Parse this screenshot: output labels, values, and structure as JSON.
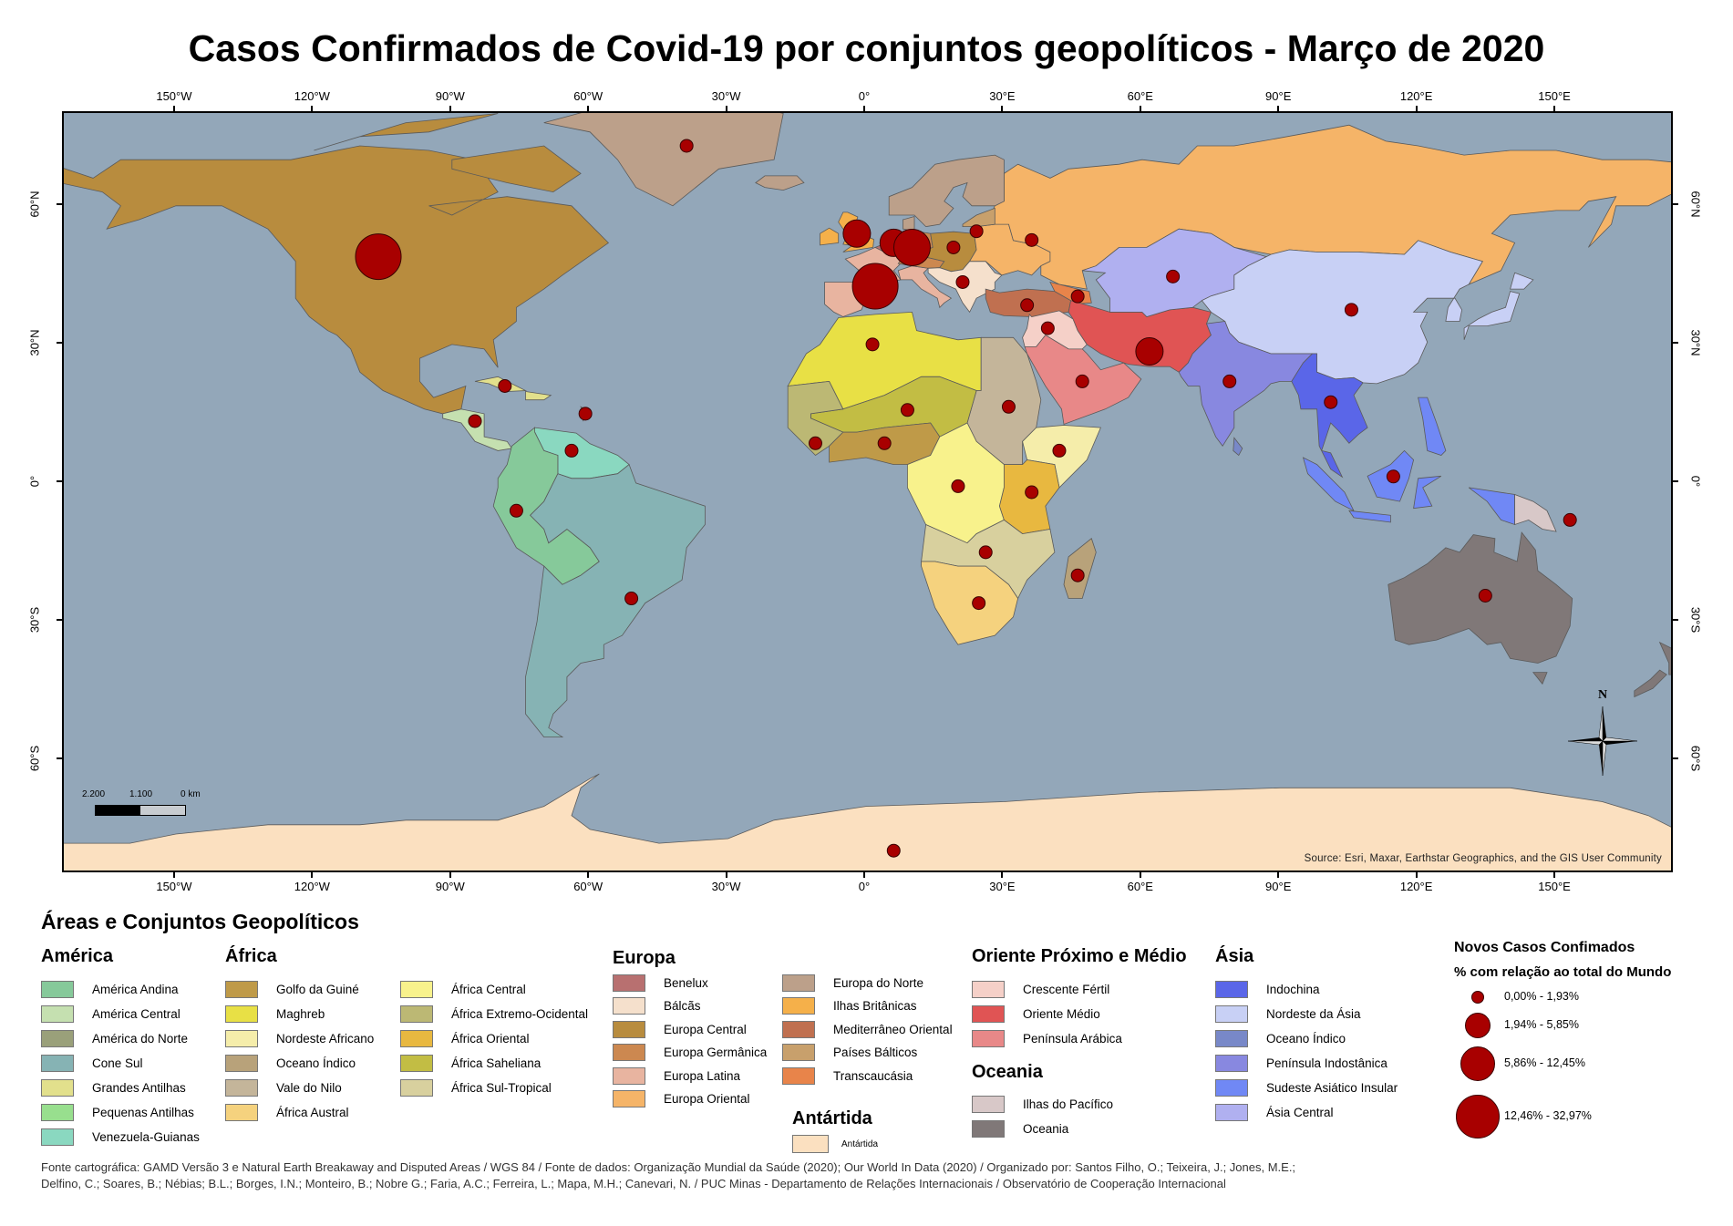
{
  "title": "Casos Confirmados de Covid-19 por conjuntos geopolíticos - Março de 2020",
  "axes": {
    "lon_ticks": [
      {
        "lon": -150,
        "label": "150°W"
      },
      {
        "lon": -120,
        "label": "120°W"
      },
      {
        "lon": -90,
        "label": "90°W"
      },
      {
        "lon": -60,
        "label": "60°W"
      },
      {
        "lon": -30,
        "label": "30°W"
      },
      {
        "lon": 0,
        "label": "0°"
      },
      {
        "lon": 30,
        "label": "30°E"
      },
      {
        "lon": 60,
        "label": "60°E"
      },
      {
        "lon": 90,
        "label": "90°E"
      },
      {
        "lon": 120,
        "label": "120°E"
      },
      {
        "lon": 150,
        "label": "150°E"
      }
    ],
    "lat_ticks": [
      {
        "lat": 60,
        "label": "60°N"
      },
      {
        "lat": 30,
        "label": "30°N"
      },
      {
        "lat": 0,
        "label": "0°"
      },
      {
        "lat": -30,
        "label": "30°S"
      },
      {
        "lat": -60,
        "label": "60°S"
      }
    ]
  },
  "map": {
    "ocean_color": "#93a7b9",
    "source": "Source: Esri, Maxar, Earthstar Geographics, and the GIS User Community",
    "scale_bar": {
      "labels": [
        "2.200",
        "1.100",
        "0 km"
      ]
    },
    "north_label": "N"
  },
  "legend": {
    "title": "Áreas e Conjuntos Geopolíticos",
    "groups": [
      {
        "header": "América",
        "items": [
          {
            "label": "América Andina",
            "color": "#86c99a"
          },
          {
            "label": "América Central",
            "color": "#c5e0b0"
          },
          {
            "label": "América do Norte",
            "color": "#9aa07a"
          },
          {
            "label": "Cone Sul",
            "color": "#86b3b4"
          },
          {
            "label": "Grandes Antilhas",
            "color": "#e2e08c"
          },
          {
            "label": "Pequenas Antilhas",
            "color": "#98df8e"
          },
          {
            "label": "Venezuela-Guianas",
            "color": "#8ad8c0"
          }
        ]
      },
      {
        "header": "África",
        "items": [
          {
            "label": "Golfo da Guiné",
            "color": "#bf9a48"
          },
          {
            "label": "Maghreb",
            "color": "#e8e045"
          },
          {
            "label": "Nordeste Africano",
            "color": "#f5edaa"
          },
          {
            "label": "Oceano Índico",
            "color": "#b8a27a"
          },
          {
            "label": "Vale do Nilo",
            "color": "#c4b59a"
          },
          {
            "label": "África Austral",
            "color": "#f5d27e"
          },
          {
            "label": "África Central",
            "color": "#f8f28c"
          },
          {
            "label": "África Extremo-Ocidental",
            "color": "#bcb874"
          },
          {
            "label": "África Oriental",
            "color": "#e8b840"
          },
          {
            "label": "África Saheliana",
            "color": "#c2bd44"
          },
          {
            "label": "África Sul-Tropical",
            "color": "#d8d09e"
          }
        ]
      },
      {
        "header": "Europa",
        "items": [
          {
            "label": "Benelux",
            "color": "#b87070"
          },
          {
            "label": "Bálcãs",
            "color": "#f5e0cc"
          },
          {
            "label": "Europa Central",
            "color": "#b88c3e"
          },
          {
            "label": "Europa Germânica",
            "color": "#cc8850"
          },
          {
            "label": "Europa Latina",
            "color": "#e8b4a0"
          },
          {
            "label": "Europa Oriental",
            "color": "#f5b468"
          },
          {
            "label": "Europa do Norte",
            "color": "#bca08a"
          },
          {
            "label": "Ilhas Britânicas",
            "color": "#f5b04a"
          },
          {
            "label": "Mediterrâneo Oriental",
            "color": "#c07050"
          },
          {
            "label": "Países Bálticos",
            "color": "#c8a06c"
          },
          {
            "label": "Transcaucásia",
            "color": "#e8844a"
          }
        ]
      },
      {
        "header": "Antártida",
        "items": [
          {
            "label": "Antártida",
            "color": "#fbe0c0"
          }
        ]
      },
      {
        "header": "Oriente Próximo e Médio",
        "items": [
          {
            "label": "Crescente Fértil",
            "color": "#f5d0c8"
          },
          {
            "label": "Oriente Médio",
            "color": "#e05454"
          },
          {
            "label": "Península Arábica",
            "color": "#e88888"
          }
        ]
      },
      {
        "header": "Oceania",
        "items": [
          {
            "label": "Ilhas do Pacífico",
            "color": "#d8c8c8"
          },
          {
            "label": "Oceania",
            "color": "#807878"
          }
        ]
      },
      {
        "header": "Ásia",
        "items": [
          {
            "label": "Indochina",
            "color": "#5a66e8"
          },
          {
            "label": "Nordeste da Ásia",
            "color": "#c8d0f5"
          },
          {
            "label": "Oceano Índico",
            "color": "#7888c8"
          },
          {
            "label": "Península Indostânica",
            "color": "#8888e0"
          },
          {
            "label": "Sudeste Asiático Insular",
            "color": "#7088f5"
          },
          {
            "label": "Ásia Central",
            "color": "#b0b0f0"
          }
        ]
      }
    ]
  },
  "bubbles_legend": {
    "title": "Novos Casos Confimados",
    "subtitle": "% com relação ao total do Mundo",
    "color": "#a80000",
    "classes": [
      "0,00% - 1,93%",
      "1,94% - 5,85%",
      "5,86% - 12,45%",
      "12,46% - 32,97%"
    ]
  },
  "bubbles": [
    {
      "lon": -39,
      "lat": 73,
      "class": 0
    },
    {
      "lon": -106,
      "lat": 49,
      "class": 3
    },
    {
      "lon": -78.5,
      "lat": 21,
      "class": 0
    },
    {
      "lon": -85,
      "lat": 13.4,
      "class": 0
    },
    {
      "lon": -61,
      "lat": 15,
      "class": 0
    },
    {
      "lon": -64,
      "lat": 7,
      "class": 0
    },
    {
      "lon": -76,
      "lat": -6,
      "class": 0
    },
    {
      "lon": -51,
      "lat": -25,
      "class": 0
    },
    {
      "lon": -2,
      "lat": 54,
      "class": 1
    },
    {
      "lon": 6,
      "lat": 52,
      "class": 1
    },
    {
      "lon": 10,
      "lat": 51,
      "class": 2
    },
    {
      "lon": 2,
      "lat": 42.6,
      "class": 3
    },
    {
      "lon": 19,
      "lat": 51,
      "class": 0
    },
    {
      "lon": 24,
      "lat": 54.5,
      "class": 0
    },
    {
      "lon": 36,
      "lat": 52.6,
      "class": 0
    },
    {
      "lon": 21,
      "lat": 43.5,
      "class": 0
    },
    {
      "lon": 35,
      "lat": 38.5,
      "class": 0
    },
    {
      "lon": 46,
      "lat": 40.4,
      "class": 0
    },
    {
      "lon": 39.5,
      "lat": 33.5,
      "class": 0
    },
    {
      "lon": 61.6,
      "lat": 28.5,
      "class": 1
    },
    {
      "lon": 47,
      "lat": 22,
      "class": 0
    },
    {
      "lon": 66.7,
      "lat": 44.7,
      "class": 0
    },
    {
      "lon": 105.5,
      "lat": 37.5,
      "class": 0
    },
    {
      "lon": 79,
      "lat": 22,
      "class": 0
    },
    {
      "lon": 101,
      "lat": 17.5,
      "class": 0
    },
    {
      "lon": 114.6,
      "lat": 1.4,
      "class": 0
    },
    {
      "lon": 134.6,
      "lat": -24.4,
      "class": 0
    },
    {
      "lon": 153,
      "lat": -8,
      "class": 0
    },
    {
      "lon": 1.4,
      "lat": 30,
      "class": 0
    },
    {
      "lon": 9,
      "lat": 15.8,
      "class": 0
    },
    {
      "lon": -11,
      "lat": 8.6,
      "class": 0
    },
    {
      "lon": 4,
      "lat": 8.6,
      "class": 0
    },
    {
      "lon": 31,
      "lat": 16.5,
      "class": 0
    },
    {
      "lon": 42,
      "lat": 7,
      "class": 0
    },
    {
      "lon": 20,
      "lat": -0.7,
      "class": 0
    },
    {
      "lon": 36,
      "lat": -2,
      "class": 0
    },
    {
      "lon": 26,
      "lat": -15,
      "class": 0
    },
    {
      "lon": 46,
      "lat": -20,
      "class": 0
    },
    {
      "lon": 24.5,
      "lat": -26,
      "class": 0
    },
    {
      "lon": 6,
      "lat": -79.6,
      "class": 0
    }
  ],
  "footer": [
    "Fonte cartográfica: GAMD Versão 3 e Natural Earth Breakaway and Disputed Areas / WGS 84 / Fonte de dados: Organização Mundial da Saúde (2020); Our World In Data (2020) / Organizado por: Santos Filho, O.; Teixeira, J.; Jones, M.E.;",
    "Delfino, C.; Soares, B.; Nébias; B.L.; Borges, I.N.; Monteiro, B.; Nobre G.; Faria, A.C.; Ferreira, L.; Mapa, M.H.; Canevari, N. / PUC Minas - Departamento de Relações Internacionais / Observatório de Cooperação Internacional"
  ]
}
